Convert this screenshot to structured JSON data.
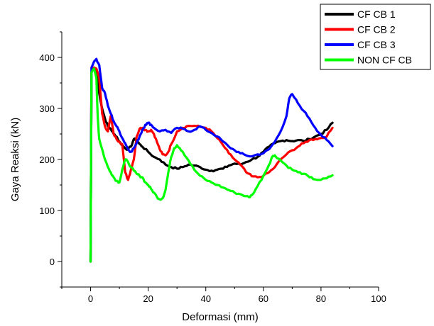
{
  "chart_data": {
    "type": "line",
    "title": "",
    "xlabel": "Deformasi (mm)",
    "ylabel": "Gaya Reaksi (kN)",
    "xlim": [
      -10,
      100
    ],
    "ylim": [
      -50,
      450
    ],
    "xticks": [
      0,
      20,
      40,
      60,
      80,
      100
    ],
    "yticks": [
      0,
      100,
      200,
      300,
      400
    ],
    "grid": false,
    "legend_position": "top-right",
    "series": [
      {
        "name": "CF CB 1",
        "color": "#000000",
        "x": [
          0,
          0.3,
          0.7,
          1.2,
          2,
          3,
          4,
          5,
          6,
          7,
          8,
          9,
          10,
          11,
          12,
          13,
          14,
          15,
          16,
          17,
          18,
          20,
          22,
          24,
          26,
          28,
          30,
          32,
          34,
          36,
          38,
          40,
          42,
          44,
          46,
          48,
          50,
          52,
          54,
          56,
          58,
          60,
          62,
          64,
          66,
          68,
          70,
          72,
          74,
          76,
          78,
          80,
          82,
          84
        ],
        "y": [
          0,
          370,
          378,
          380,
          375,
          330,
          300,
          280,
          265,
          260,
          250,
          245,
          235,
          228,
          222,
          220,
          225,
          240,
          238,
          230,
          225,
          215,
          205,
          200,
          190,
          185,
          182,
          185,
          190,
          188,
          185,
          180,
          178,
          180,
          182,
          188,
          192,
          190,
          195,
          200,
          205,
          215,
          225,
          232,
          236,
          238,
          236,
          238,
          236,
          240,
          245,
          250,
          258,
          272
        ]
      },
      {
        "name": "CF CB 2",
        "color": "#ff0000",
        "x": [
          0,
          0.3,
          0.7,
          1.2,
          2,
          3,
          4,
          5,
          6,
          7,
          8,
          9,
          10,
          11,
          12,
          13,
          14,
          15,
          16,
          17,
          18,
          19,
          20,
          21,
          22,
          23,
          24,
          25,
          26,
          27,
          28,
          30,
          32,
          34,
          36,
          38,
          40,
          42,
          44,
          46,
          48,
          50,
          52,
          54,
          56,
          58,
          60,
          62,
          64,
          66,
          68,
          70,
          72,
          74,
          76,
          78,
          80,
          82,
          84
        ],
        "y": [
          0,
          370,
          378,
          380,
          378,
          360,
          290,
          265,
          255,
          285,
          250,
          240,
          235,
          230,
          175,
          160,
          180,
          200,
          245,
          260,
          262,
          258,
          255,
          258,
          250,
          235,
          220,
          210,
          208,
          215,
          230,
          255,
          262,
          266,
          266,
          264,
          262,
          255,
          242,
          228,
          212,
          200,
          190,
          175,
          167,
          165,
          168,
          175,
          185,
          200,
          210,
          218,
          225,
          232,
          238,
          240,
          242,
          245,
          262
        ]
      },
      {
        "name": "CF CB 3",
        "color": "#0000ff",
        "x": [
          0,
          0.3,
          0.7,
          1.2,
          2,
          3,
          4,
          5,
          6,
          7,
          8,
          9,
          10,
          11,
          12,
          13,
          14,
          15,
          16,
          17,
          18,
          19,
          20,
          21,
          22,
          24,
          26,
          28,
          30,
          32,
          34,
          36,
          38,
          40,
          42,
          44,
          46,
          48,
          50,
          52,
          54,
          56,
          58,
          60,
          62,
          64,
          66,
          68,
          69,
          70,
          72,
          74,
          76,
          78,
          80,
          82,
          84
        ],
        "y": [
          0,
          380,
          385,
          392,
          397,
          385,
          340,
          330,
          305,
          290,
          275,
          265,
          255,
          242,
          232,
          220,
          215,
          222,
          232,
          245,
          258,
          268,
          272,
          268,
          262,
          255,
          258,
          252,
          262,
          260,
          255,
          258,
          265,
          258,
          252,
          245,
          235,
          225,
          218,
          212,
          208,
          206,
          210,
          212,
          220,
          235,
          255,
          285,
          320,
          328,
          310,
          295,
          280,
          262,
          248,
          238,
          226
        ]
      },
      {
        "name": "NON CF CB",
        "color": "#00ff00",
        "x": [
          0,
          0.3,
          0.7,
          1.2,
          2,
          2.5,
          3,
          3.5,
          4,
          5,
          6,
          7,
          8,
          9,
          10,
          11,
          12,
          13,
          14,
          15,
          16,
          17,
          18,
          19,
          20,
          21,
          22,
          23,
          24,
          25,
          26,
          27,
          28,
          29,
          30,
          31,
          32,
          34,
          36,
          38,
          40,
          42,
          44,
          46,
          48,
          50,
          52,
          54,
          55,
          56,
          58,
          60,
          62,
          63,
          64,
          66,
          68,
          70,
          72,
          74,
          76,
          78,
          80,
          82,
          84
        ],
        "y": [
          0,
          370,
          375,
          378,
          360,
          280,
          240,
          230,
          220,
          200,
          185,
          175,
          165,
          158,
          155,
          180,
          200,
          195,
          185,
          178,
          172,
          168,
          165,
          155,
          150,
          142,
          135,
          127,
          122,
          124,
          140,
          175,
          205,
          222,
          228,
          222,
          215,
          198,
          180,
          168,
          160,
          155,
          150,
          145,
          140,
          135,
          132,
          128,
          126,
          130,
          148,
          168,
          190,
          205,
          208,
          198,
          188,
          180,
          175,
          172,
          165,
          161,
          160,
          163,
          169
        ]
      }
    ]
  }
}
